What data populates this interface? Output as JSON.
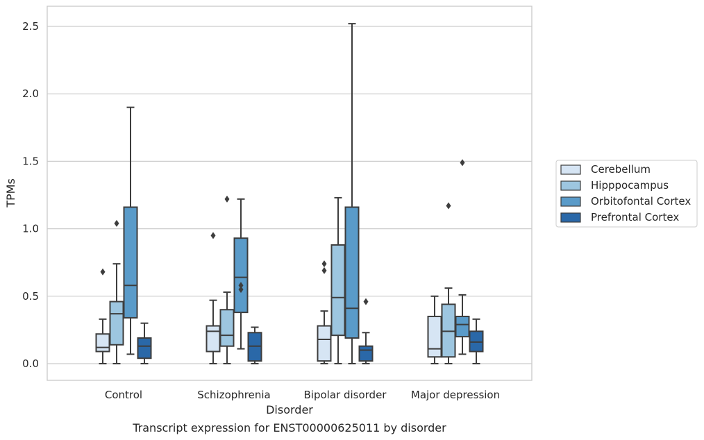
{
  "chart_data": {
    "type": "box",
    "xlabel": "Disorder",
    "ylabel": "TPMs",
    "caption": "Transcript expression for ENST00000625011 by disorder",
    "ylim": [
      -0.12,
      2.64
    ],
    "yticks": [
      0.0,
      0.5,
      1.0,
      1.5,
      2.0,
      2.5
    ],
    "ytick_labels": [
      "0.0",
      "0.5",
      "1.0",
      "1.5",
      "2.0",
      "2.5"
    ],
    "grid": "horizontal",
    "legend_position": "right",
    "categories": [
      "Control",
      "Schizophrenia",
      "Bipolar disorder",
      "Major depression"
    ],
    "series": [
      {
        "name": "Cerebellum",
        "color": "#d6e5f4",
        "boxes": [
          {
            "whislo": 0.0,
            "q1": 0.09,
            "med": 0.12,
            "q3": 0.22,
            "whishi": 0.33,
            "fliers": [
              0.68
            ]
          },
          {
            "whislo": 0.0,
            "q1": 0.09,
            "med": 0.24,
            "q3": 0.28,
            "whishi": 0.47,
            "fliers": [
              0.95
            ]
          },
          {
            "whislo": 0.0,
            "q1": 0.02,
            "med": 0.18,
            "q3": 0.28,
            "whishi": 0.39,
            "fliers": [
              0.69,
              0.74
            ]
          },
          {
            "whislo": 0.0,
            "q1": 0.05,
            "med": 0.11,
            "q3": 0.35,
            "whishi": 0.5,
            "fliers": []
          }
        ]
      },
      {
        "name": "Hipppocampus",
        "color": "#9dc6e0",
        "boxes": [
          {
            "whislo": 0.0,
            "q1": 0.14,
            "med": 0.37,
            "q3": 0.46,
            "whishi": 0.74,
            "fliers": [
              1.04
            ]
          },
          {
            "whislo": 0.0,
            "q1": 0.13,
            "med": 0.21,
            "q3": 0.4,
            "whishi": 0.53,
            "fliers": [
              1.22
            ]
          },
          {
            "whislo": 0.0,
            "q1": 0.21,
            "med": 0.49,
            "q3": 0.88,
            "whishi": 1.23,
            "fliers": []
          },
          {
            "whislo": 0.0,
            "q1": 0.05,
            "med": 0.24,
            "q3": 0.44,
            "whishi": 0.56,
            "fliers": [
              1.17
            ]
          }
        ]
      },
      {
        "name": "Orbitofontal Cortex",
        "color": "#5a9bc9",
        "boxes": [
          {
            "whislo": 0.07,
            "q1": 0.34,
            "med": 0.58,
            "q3": 1.16,
            "whishi": 1.9,
            "fliers": []
          },
          {
            "whislo": 0.11,
            "q1": 0.38,
            "med": 0.64,
            "q3": 0.93,
            "whishi": 1.22,
            "fliers": [
              0.55,
              0.58
            ]
          },
          {
            "whislo": 0.0,
            "q1": 0.19,
            "med": 0.41,
            "q3": 1.16,
            "whishi": 2.52,
            "fliers": []
          },
          {
            "whislo": 0.07,
            "q1": 0.2,
            "med": 0.29,
            "q3": 0.35,
            "whishi": 0.51,
            "fliers": [
              1.49
            ]
          }
        ]
      },
      {
        "name": "Prefrontal Cortex",
        "color": "#2a68a8",
        "boxes": [
          {
            "whislo": 0.0,
            "q1": 0.04,
            "med": 0.13,
            "q3": 0.19,
            "whishi": 0.3,
            "fliers": []
          },
          {
            "whislo": 0.0,
            "q1": 0.02,
            "med": 0.13,
            "q3": 0.23,
            "whishi": 0.27,
            "fliers": []
          },
          {
            "whislo": 0.0,
            "q1": 0.02,
            "med": 0.1,
            "q3": 0.13,
            "whishi": 0.23,
            "fliers": [
              0.46
            ]
          },
          {
            "whislo": 0.0,
            "q1": 0.09,
            "med": 0.16,
            "q3": 0.24,
            "whishi": 0.33,
            "fliers": []
          }
        ]
      }
    ]
  }
}
